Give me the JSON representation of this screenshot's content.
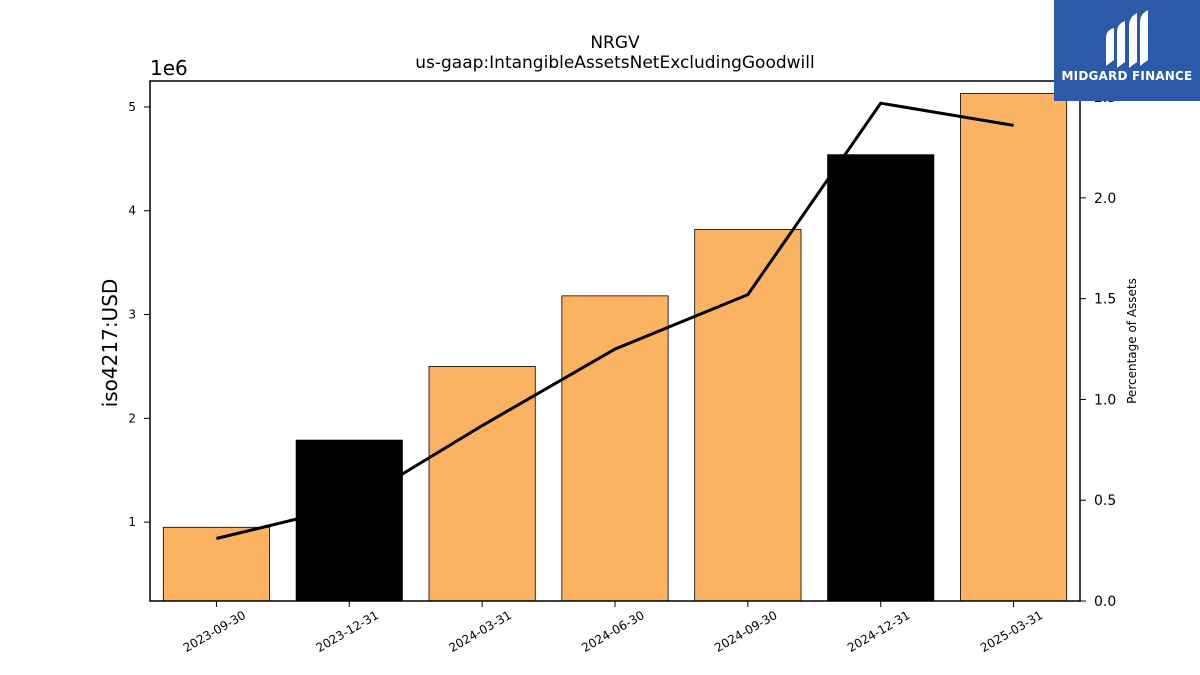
{
  "chart_data": {
    "type": "bar",
    "title": "NRGV",
    "subtitle": "us-gaap:IntangibleAssetsNetExcludingGoodwill",
    "ylabel": "iso4217:USD",
    "y_offset_label": "1e6",
    "y2label": "Percentage of Assets",
    "categories": [
      "2023-09-30",
      "2023-12-31",
      "2024-03-31",
      "2024-06-30",
      "2024-09-30",
      "2024-12-31",
      "2025-03-31"
    ],
    "series": [
      {
        "type": "bar",
        "axis": "left",
        "values": [
          950000,
          1790000,
          2500000,
          3180000,
          3820000,
          4540000,
          5130000
        ],
        "colors": [
          "#fbb262",
          "#000000",
          "#fbb262",
          "#fbb262",
          "#fbb262",
          "#000000",
          "#fbb262"
        ]
      },
      {
        "type": "line",
        "axis": "right",
        "values": [
          0.31,
          0.47,
          0.87,
          1.25,
          1.52,
          2.47,
          2.36
        ],
        "color": "#000000"
      }
    ],
    "ylim": [
      240000,
      5250000
    ],
    "y_ticks": [
      1,
      2,
      3,
      4,
      5
    ],
    "y2lim": [
      0,
      2.58
    ],
    "y2_ticks": [
      "0.0",
      "0.5",
      "1.0",
      "1.5",
      "2.0",
      "2.5"
    ],
    "grid": false
  },
  "logo": {
    "text": "MIDGARD FINANCE",
    "color": "#2b5aa8"
  }
}
